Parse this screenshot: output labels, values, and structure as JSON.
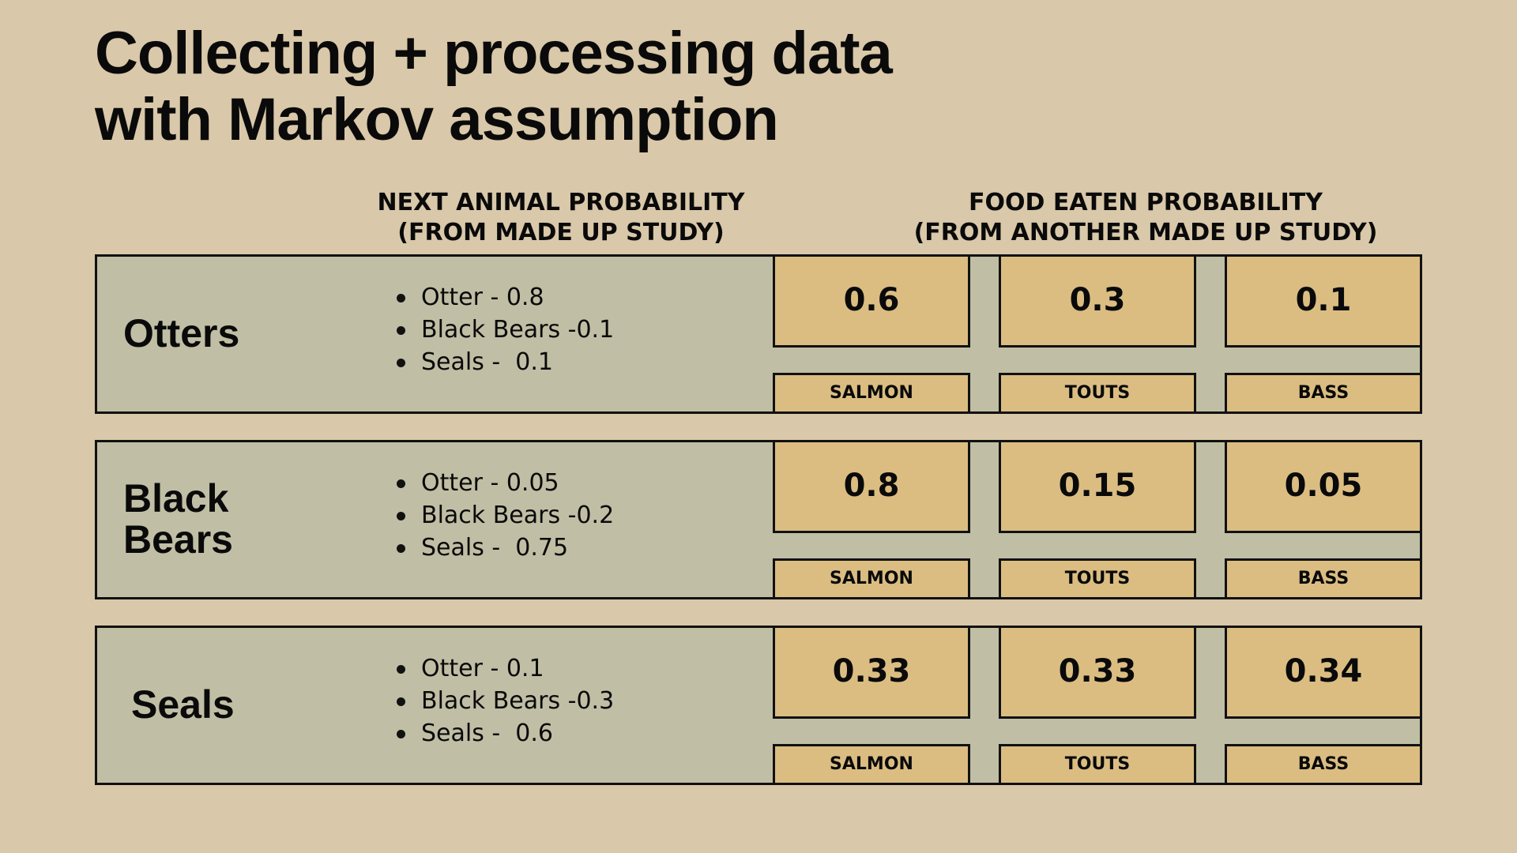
{
  "title": {
    "line1": "Collecting + processing data",
    "line2": "with Markov assumption"
  },
  "headers": {
    "next_animal": {
      "line1": "NEXT ANIMAL PROBABILITY",
      "line2": "(FROM MADE UP STUDY)"
    },
    "food_eaten": {
      "line1": "FOOD EATEN  PROBABILITY",
      "line2": "(FROM ANOTHER MADE UP STUDY)"
    }
  },
  "rows": [
    {
      "animal_line1": "Otters",
      "animal_line2": "",
      "next": [
        "Otter - 0.8",
        "Black Bears -0.1",
        "Seals -  0.1"
      ],
      "food": [
        {
          "prob": "0.6",
          "label": "SALMON"
        },
        {
          "prob": "0.3",
          "label": "TOUTS"
        },
        {
          "prob": "0.1",
          "label": "BASS"
        }
      ]
    },
    {
      "animal_line1": "Black",
      "animal_line2": "Bears",
      "next": [
        "Otter - 0.05",
        "Black Bears -0.2",
        "Seals -  0.75"
      ],
      "food": [
        {
          "prob": "0.8",
          "label": "SALMON"
        },
        {
          "prob": "0.15",
          "label": "TOUTS"
        },
        {
          "prob": "0.05",
          "label": "BASS"
        }
      ]
    },
    {
      "animal_line1": "Seals",
      "animal_line2": "",
      "next": [
        "Otter - 0.1",
        "Black Bears -0.3",
        "Seals -  0.6"
      ],
      "food": [
        {
          "prob": "0.33",
          "label": "SALMON"
        },
        {
          "prob": "0.33",
          "label": "TOUTS"
        },
        {
          "prob": "0.34",
          "label": "BASS"
        }
      ]
    }
  ],
  "colors": {
    "background": "#d9c8a9",
    "row_fill": "#c0bea4",
    "box_fill": "#dbbd82",
    "border": "#111111"
  }
}
